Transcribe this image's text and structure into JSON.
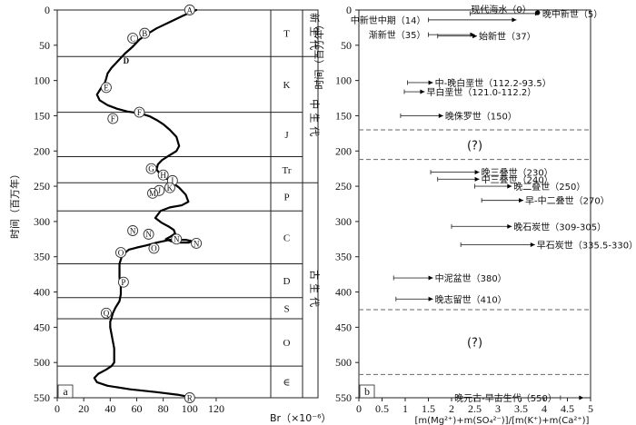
{
  "chart_data": [
    {
      "panel": "a",
      "type": "line",
      "ylabel": "时间（百万年）",
      "xlabel": "Br（×10⁻⁶）",
      "xlim": [
        0,
        140
      ],
      "ylim": [
        550,
        0
      ],
      "xticks": [
        0,
        20,
        40,
        60,
        80,
        100,
        120
      ],
      "yticks": [
        0,
        50,
        100,
        150,
        200,
        250,
        300,
        350,
        400,
        450,
        500,
        550
      ],
      "curve": {
        "x": [
          105,
          95,
          85,
          75,
          68,
          62,
          57,
          51,
          46,
          41,
          38,
          37,
          36,
          34,
          32,
          30,
          32,
          38,
          45,
          53,
          60,
          65,
          70,
          75,
          80,
          85,
          90,
          92,
          90,
          84,
          79,
          76,
          75,
          78,
          85,
          92,
          97,
          99,
          94,
          85,
          78,
          74,
          79,
          84,
          88,
          89,
          85,
          82,
          86,
          93,
          99,
          102,
          97,
          85,
          75,
          67,
          60,
          54,
          49,
          47,
          47,
          48,
          48,
          47,
          44,
          42,
          41,
          40,
          40,
          41,
          42,
          43,
          43,
          43,
          41,
          37,
          31,
          28,
          30,
          38,
          55,
          75,
          92,
          100
        ],
        "y": [
          0,
          8,
          17,
          26,
          34,
          42,
          52,
          62,
          72,
          82,
          90,
          97,
          103,
          108,
          114,
          120,
          128,
          135,
          140,
          144,
          146,
          148,
          151,
          156,
          162,
          170,
          180,
          193,
          200,
          207,
          213,
          219,
          226,
          234,
          242,
          252,
          262,
          272,
          277,
          280,
          285,
          295,
          302,
          307,
          312,
          317,
          322,
          325,
          328,
          330,
          330,
          328,
          326,
          326,
          330,
          334,
          337,
          340,
          348,
          360,
          380,
          393,
          403,
          413,
          422,
          430,
          437,
          442,
          450,
          460,
          470,
          480,
          490,
          500,
          505,
          510,
          516,
          522,
          528,
          533,
          538,
          542,
          546,
          549
        ]
      },
      "markers": [
        {
          "label": "A",
          "x": 100,
          "y": 0
        },
        {
          "label": "B",
          "x": 66,
          "y": 33
        },
        {
          "label": "C",
          "x": 57,
          "y": 40
        },
        {
          "label": "D",
          "x": 52,
          "y": 71
        },
        {
          "label": "E",
          "x": 37,
          "y": 110
        },
        {
          "label": "F",
          "x": 62,
          "y": 145
        },
        {
          "label": "F",
          "x": 42,
          "y": 154
        },
        {
          "label": "G",
          "x": 71,
          "y": 225
        },
        {
          "label": "H",
          "x": 80,
          "y": 234
        },
        {
          "label": "I",
          "x": 87,
          "y": 242
        },
        {
          "label": "J",
          "x": 77,
          "y": 256
        },
        {
          "label": "K",
          "x": 85,
          "y": 252
        },
        {
          "label": "M",
          "x": 72,
          "y": 260
        },
        {
          "label": "N",
          "x": 57,
          "y": 313
        },
        {
          "label": "N",
          "x": 69,
          "y": 318
        },
        {
          "label": "N",
          "x": 90,
          "y": 325
        },
        {
          "label": "N",
          "x": 105,
          "y": 331
        },
        {
          "label": "O",
          "x": 73,
          "y": 338
        },
        {
          "label": "O",
          "x": 48,
          "y": 344
        },
        {
          "label": "P",
          "x": 50,
          "y": 386
        },
        {
          "label": "Q",
          "x": 37,
          "y": 430
        },
        {
          "label": "R",
          "x": 100,
          "y": 550
        }
      ],
      "periods": [
        {
          "label": "T",
          "from": 0,
          "to": 66
        },
        {
          "label": "K",
          "from": 66,
          "to": 145
        },
        {
          "label": "J",
          "from": 145,
          "to": 208
        },
        {
          "label": "Tr",
          "from": 208,
          "to": 245
        },
        {
          "label": "P",
          "from": 245,
          "to": 285
        },
        {
          "label": "C",
          "from": 285,
          "to": 360
        },
        {
          "label": "D",
          "from": 360,
          "to": 408
        },
        {
          "label": "S",
          "from": 408,
          "to": 438
        },
        {
          "label": "O",
          "from": 438,
          "to": 505
        },
        {
          "label": "∈",
          "from": 505,
          "to": 550
        }
      ],
      "eras": [
        {
          "label": "新生代",
          "from": 0,
          "to": 66
        },
        {
          "label": "中生代",
          "from": 66,
          "to": 245
        },
        {
          "label": "古生代",
          "from": 245,
          "to": 550
        }
      ]
    },
    {
      "panel": "b",
      "type": "range",
      "ylabel": "时间（百万年）",
      "xlabel": "[m(Mg²⁺)+m(SO₄²⁻)]/[m(K⁺)+m(Ca²⁺)]",
      "xlim": [
        0,
        5
      ],
      "ylim": [
        550,
        0
      ],
      "xticks": [
        0,
        0.5,
        1.0,
        1.5,
        2.0,
        2.5,
        3.0,
        3.5,
        4.0,
        4.5,
        5.0
      ],
      "yticks": [
        0,
        50,
        100,
        150,
        200,
        250,
        300,
        350,
        400,
        450,
        500,
        550
      ],
      "unknown_label": "(?)",
      "unknown_bands": [
        {
          "from": 170,
          "to": 212
        },
        {
          "from": 425,
          "to": 517
        }
      ],
      "intervals": [
        {
          "label": "现代海水（0）",
          "y": 0,
          "from": 3.8,
          "to": 3.8,
          "type": "point"
        },
        {
          "label": "晚中新世（5）",
          "y": 5,
          "from": 2.4,
          "to": 3.9,
          "type": "range"
        },
        {
          "label": "中新世中期（14）",
          "y": 14,
          "from": 1.5,
          "to": 3.4,
          "type": "range"
        },
        {
          "label": "渐新世（35）",
          "y": 35,
          "from": 1.5,
          "to": 2.5,
          "type": "range"
        },
        {
          "label": "始新世（37）",
          "y": 37,
          "from": 1.7,
          "to": 2.55,
          "type": "range"
        },
        {
          "label": "中-晚白垩世（112.2-93.5）",
          "y": 103,
          "from": 1.05,
          "to": 1.6,
          "type": "range"
        },
        {
          "label": "早白垩世（121.0-112.2）",
          "y": 116,
          "from": 0.98,
          "to": 1.42,
          "type": "range"
        },
        {
          "label": "晚侏罗世（150）",
          "y": 150,
          "from": 0.9,
          "to": 1.82,
          "type": "range"
        },
        {
          "label": "晚三叠世（230）",
          "y": 230,
          "from": 1.55,
          "to": 2.6,
          "type": "range"
        },
        {
          "label": "中三叠世（240）",
          "y": 240,
          "from": 1.7,
          "to": 2.6,
          "type": "range"
        },
        {
          "label": "晚二叠世（250）",
          "y": 250,
          "from": 2.5,
          "to": 3.3,
          "type": "range"
        },
        {
          "label": "早-中二叠世（270）",
          "y": 270,
          "from": 2.65,
          "to": 3.55,
          "type": "range"
        },
        {
          "label": "晚石炭世（309-305）",
          "y": 307,
          "from": 2.0,
          "to": 3.3,
          "type": "range"
        },
        {
          "label": "早石炭世（335.5-330）",
          "y": 333,
          "from": 2.2,
          "to": 3.8,
          "type": "range"
        },
        {
          "label": "中泥盆世（380）",
          "y": 380,
          "from": 0.75,
          "to": 1.6,
          "type": "range"
        },
        {
          "label": "晚志留世（410）",
          "y": 410,
          "from": 0.8,
          "to": 1.6,
          "type": "range"
        },
        {
          "label": "晚元古-早古生代（550）",
          "y": 550,
          "from": 4.35,
          "to": 4.85,
          "type": "range"
        }
      ]
    }
  ]
}
